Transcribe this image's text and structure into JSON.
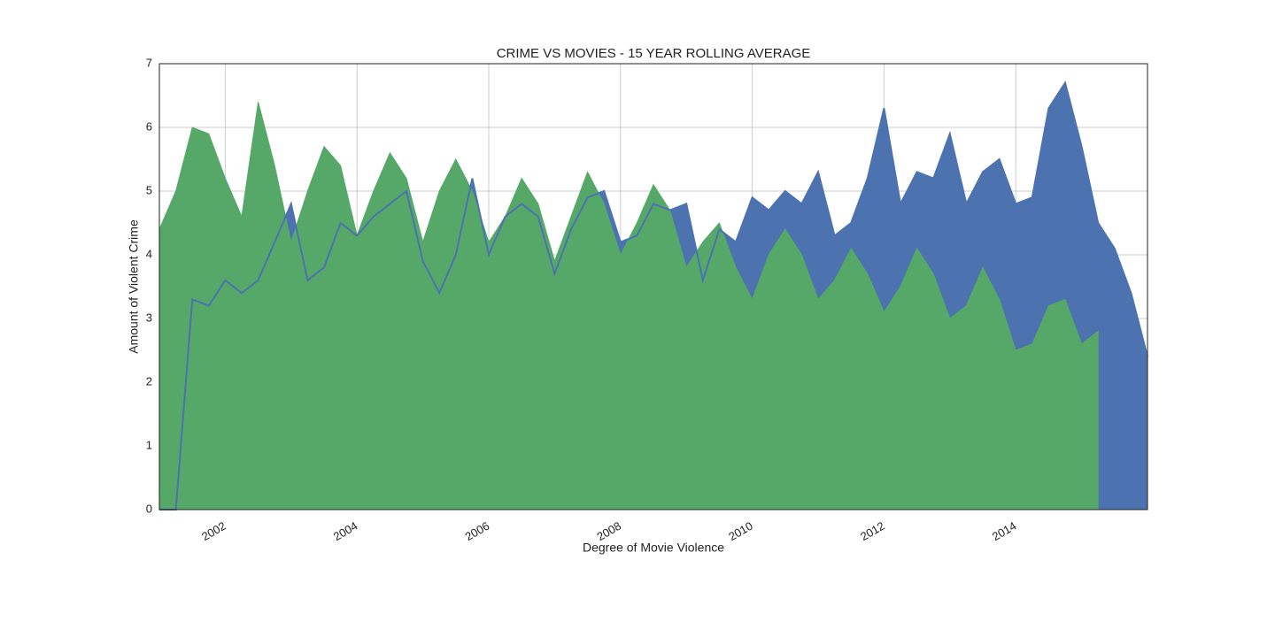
{
  "chart_data": {
    "type": "area",
    "title": "CRIME VS MOVIES - 15 YEAR ROLLING AVERAGE",
    "x_label": "Degree of Movie Violence",
    "y_label": "Amount of Violent Crime",
    "x": [
      2001.0,
      2001.25,
      2001.5,
      2001.75,
      2002.0,
      2002.25,
      2002.5,
      2002.75,
      2003.0,
      2003.25,
      2003.5,
      2003.75,
      2004.0,
      2004.25,
      2004.5,
      2004.75,
      2005.0,
      2005.25,
      2005.5,
      2005.75,
      2006.0,
      2006.25,
      2006.5,
      2006.75,
      2007.0,
      2007.25,
      2007.5,
      2007.75,
      2008.0,
      2008.25,
      2008.5,
      2008.75,
      2009.0,
      2009.25,
      2009.5,
      2009.75,
      2010.0,
      2010.25,
      2010.5,
      2010.75,
      2011.0,
      2011.25,
      2011.5,
      2011.75,
      2012.0,
      2012.25,
      2012.5,
      2012.75,
      2013.0,
      2013.25,
      2013.5,
      2013.75,
      2014.0,
      2014.25,
      2014.5,
      2014.75,
      2015.0,
      2015.25,
      2015.5,
      2015.75,
      2016.0
    ],
    "series": [
      {
        "color": "#4c72b0",
        "values": [
          0,
          0,
          3.3,
          3.2,
          3.6,
          3.4,
          3.6,
          4.2,
          4.8,
          3.6,
          3.8,
          4.5,
          4.3,
          4.6,
          4.8,
          5.0,
          3.9,
          3.4,
          4.0,
          5.2,
          4.0,
          4.6,
          4.8,
          4.6,
          3.7,
          4.4,
          4.9,
          5.0,
          4.2,
          4.3,
          4.8,
          4.7,
          4.8,
          3.6,
          4.4,
          4.2,
          4.9,
          4.7,
          5.0,
          4.8,
          5.3,
          4.3,
          4.5,
          5.2,
          6.3,
          4.8,
          5.3,
          5.2,
          5.9,
          4.8,
          5.3,
          5.5,
          4.8,
          4.9,
          6.3,
          6.7,
          5.7,
          4.5,
          4.1,
          3.4,
          2.4
        ]
      },
      {
        "color": "#55a868",
        "values": [
          4.4,
          5.0,
          6.0,
          5.9,
          5.2,
          4.6,
          6.4,
          5.4,
          4.2,
          5.0,
          5.7,
          5.4,
          4.3,
          5.0,
          5.6,
          5.2,
          4.2,
          5.0,
          5.5,
          5.0,
          4.2,
          4.6,
          5.2,
          4.8,
          3.9,
          4.6,
          5.3,
          4.8,
          4.0,
          4.5,
          5.1,
          4.7,
          3.8,
          4.2,
          4.5,
          3.8,
          3.3,
          4.0,
          4.4,
          4.0,
          3.3,
          3.6,
          4.1,
          3.7,
          3.1,
          3.5,
          4.1,
          3.7,
          3.0,
          3.2,
          3.8,
          3.3,
          2.5,
          2.6,
          3.2,
          3.3,
          2.6,
          2.8,
          null,
          null,
          null
        ]
      }
    ],
    "xlim": [
      2001,
      2016
    ],
    "xticks": [
      2002,
      2004,
      2006,
      2008,
      2010,
      2012,
      2014
    ],
    "ylim": [
      0,
      7
    ],
    "yticks": [
      0,
      1,
      2,
      3,
      4,
      5,
      6,
      7
    ],
    "grid": true
  }
}
